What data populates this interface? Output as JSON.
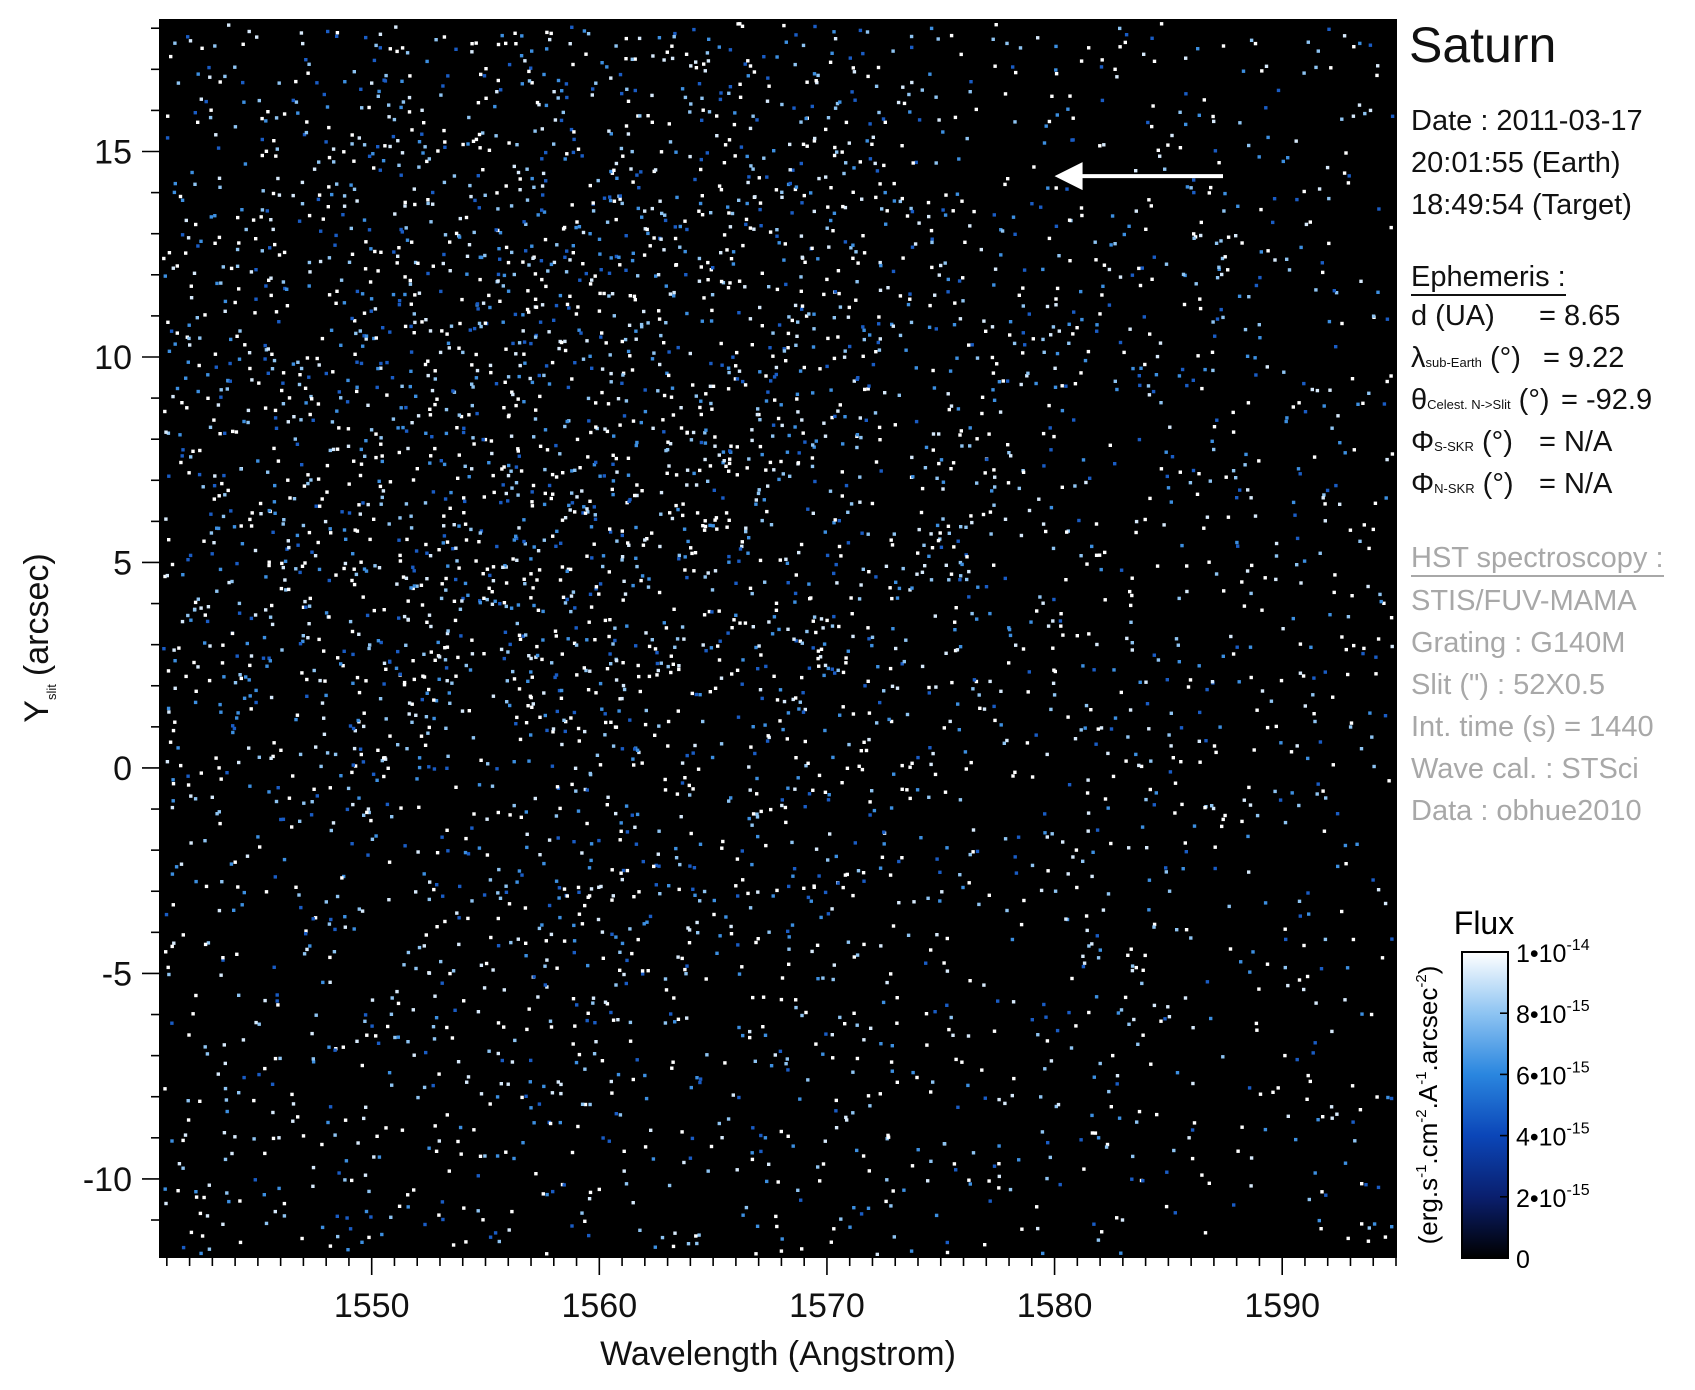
{
  "chart_data": {
    "type": "heatmap",
    "xlabel": "Wavelength (Angstrom)",
    "ylabel": "Y",
    "ylabel_sub": "slit",
    "ylabel_unit": "(arcsec)",
    "xlim": [
      1540.7,
      1595
    ],
    "ylim": [
      -11.9,
      18.2
    ],
    "x_ticks": [
      1550,
      1560,
      1570,
      1580,
      1590
    ],
    "y_ticks": [
      -10,
      -5,
      0,
      5,
      10,
      15
    ],
    "x_ticklabels": [
      "1550",
      "1560",
      "1570",
      "1580",
      "1590"
    ],
    "y_ticklabels": [
      "-10",
      "-5",
      "0",
      "5",
      "10",
      "15"
    ],
    "colorbar": {
      "title": "Flux",
      "label_parts": [
        "(erg.s",
        "-1",
        ".cm",
        "-2",
        ".A",
        "-1",
        ".arcsec",
        "-2",
        ")"
      ],
      "range": [
        0,
        1e-14
      ],
      "ticks": [
        {
          "value": 0,
          "mant": "0",
          "exp": ""
        },
        {
          "value": 2e-15,
          "mant": "2•10",
          "exp": "-15"
        },
        {
          "value": 4e-15,
          "mant": "4•10",
          "exp": "-15"
        },
        {
          "value": 6e-15,
          "mant": "6•10",
          "exp": "-15"
        },
        {
          "value": 8e-15,
          "mant": "8•10",
          "exp": "-15"
        },
        {
          "value": 1e-14,
          "mant": "1•10",
          "exp": "-14"
        }
      ],
      "colors": [
        "#000000",
        "#0a1f6e",
        "#0b46b8",
        "#2a86df",
        "#8ec4f2",
        "#ffffff"
      ]
    },
    "arrow": {
      "from": [
        1587.4,
        14.4
      ],
      "to": [
        1580.0,
        14.4
      ]
    }
  },
  "panel": {
    "planet": "Saturn",
    "date_line1": "Date : 2011-03-17",
    "date_line2": "20:01:55 (Earth)",
    "date_line3": "18:49:54 (Target)",
    "ephemeris_title": "Ephemeris :",
    "ephemeris": [
      {
        "sym": "d (UA)",
        "sub": "",
        "unit": "",
        "value": "= 8.65"
      },
      {
        "sym": "λ",
        "sub": "sub-Earth",
        "unit": "(°)",
        "value": "= 9.22"
      },
      {
        "sym": "θ",
        "sub": "Celest. N->Slit",
        "unit": "(°)",
        "value": "= -92.9"
      },
      {
        "sym": "Φ",
        "sub": "S-SKR",
        "unit": "(°)",
        "value": "= N/A"
      },
      {
        "sym": "Φ",
        "sub": "N-SKR",
        "unit": "(°)",
        "value": "= N/A"
      }
    ],
    "hst_title": "HST spectroscopy :",
    "hst_lines": [
      "STIS/FUV-MAMA",
      "Grating : G140M",
      "Slit (\") : 52X0.5",
      "Int. time (s) = 1440",
      "Wave cal. : STSci",
      "Data : obhue2010"
    ]
  }
}
